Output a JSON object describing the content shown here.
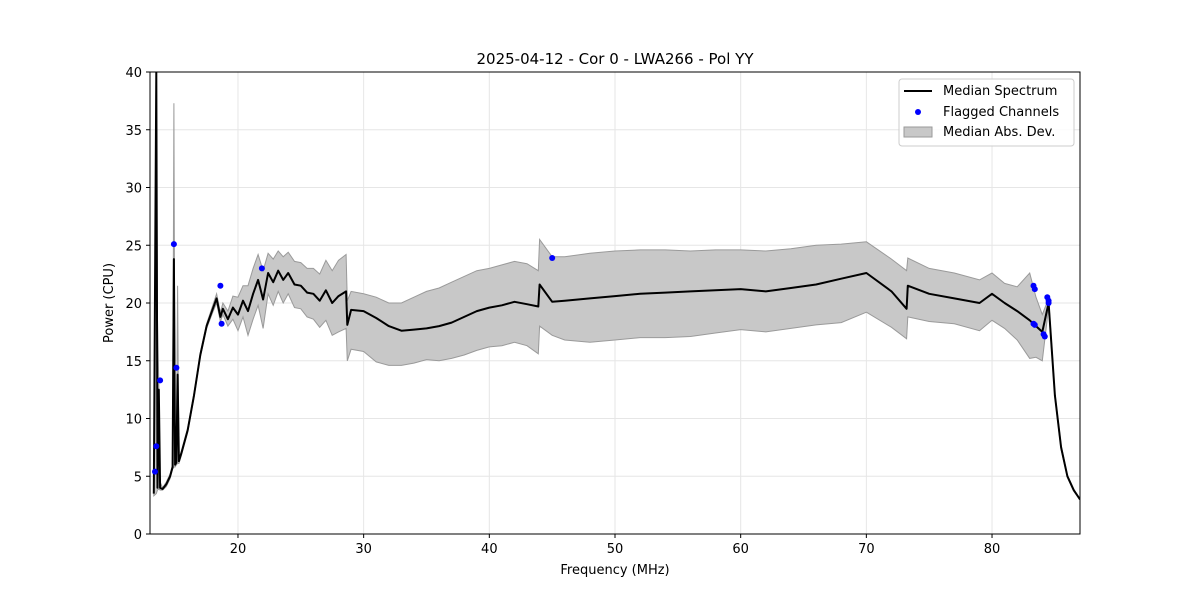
{
  "chart_data": {
    "type": "line",
    "title": "2025-04-12 - Cor 0 - LWA266 - Pol YY",
    "xlabel": "Frequency (MHz)",
    "ylabel": "Power (CPU)",
    "xlim": [
      13,
      87
    ],
    "ylim": [
      0,
      40
    ],
    "xticks": [
      20,
      30,
      40,
      50,
      60,
      70,
      80
    ],
    "yticks": [
      0,
      5,
      10,
      15,
      20,
      25,
      30,
      35,
      40
    ],
    "grid": true,
    "legend_position": "top-right",
    "legend": {
      "median_label": "Median Spectrum",
      "flagged_label": "Flagged Channels",
      "mad_label": "Median Abs. Dev."
    },
    "colors": {
      "median": "#000000",
      "flagged": "#0000ff",
      "band_fill": "#c8c8c8",
      "band_edge": "#9a9a9a",
      "grid": "#e6e6e6"
    },
    "series": [
      {
        "name": "Median Spectrum",
        "x": [
          13.3,
          13.5,
          13.6,
          13.7,
          13.8,
          14.0,
          14.3,
          14.6,
          14.8,
          14.9,
          15.0,
          15.1,
          15.2,
          15.3,
          15.5,
          16.0,
          16.5,
          17.0,
          17.5,
          18.0,
          18.3,
          18.6,
          18.8,
          19.2,
          19.6,
          20.0,
          20.4,
          20.8,
          21.2,
          21.6,
          22.0,
          22.4,
          22.8,
          23.2,
          23.6,
          24.0,
          24.5,
          25.0,
          25.5,
          26.0,
          26.5,
          27.0,
          27.5,
          28.0,
          28.6,
          28.7,
          29.0,
          30.0,
          31.0,
          32.0,
          33.0,
          34.0,
          35.0,
          36.0,
          37.0,
          38.0,
          39.0,
          40.0,
          41.0,
          42.0,
          43.0,
          43.9,
          44.0,
          45.0,
          46.0,
          48.0,
          50.0,
          52.0,
          54.0,
          56.0,
          58.0,
          60.0,
          62.0,
          64.0,
          66.0,
          68.0,
          70.0,
          72.0,
          73.2,
          73.3,
          75.0,
          77.0,
          79.0,
          80.0,
          81.0,
          82.0,
          83.0,
          83.5,
          84.0,
          84.5,
          85.0,
          85.5,
          86.0,
          86.5,
          87.0
        ],
        "values": [
          3.5,
          40.0,
          4.0,
          12.5,
          4.0,
          3.9,
          4.3,
          5.0,
          5.8,
          23.8,
          6.0,
          6.2,
          13.8,
          6.3,
          7.0,
          9.0,
          12.0,
          15.5,
          18.0,
          19.5,
          20.4,
          18.8,
          19.5,
          18.6,
          19.6,
          19.0,
          20.2,
          19.3,
          20.8,
          22.0,
          20.3,
          22.6,
          21.8,
          22.8,
          22.0,
          22.6,
          21.6,
          21.5,
          20.9,
          20.8,
          20.2,
          21.1,
          20.0,
          20.6,
          21.0,
          18.1,
          19.4,
          19.3,
          18.7,
          18.0,
          17.6,
          17.7,
          17.8,
          18.0,
          18.3,
          18.8,
          19.3,
          19.6,
          19.8,
          20.1,
          19.9,
          19.7,
          21.6,
          20.1,
          20.2,
          20.4,
          20.6,
          20.8,
          20.9,
          21.0,
          21.1,
          21.2,
          21.0,
          21.3,
          21.6,
          22.1,
          22.6,
          21.0,
          19.5,
          21.5,
          20.8,
          20.4,
          20.0,
          20.8,
          20.0,
          19.3,
          18.5,
          18.0,
          17.5,
          20.0,
          12.0,
          7.5,
          5.0,
          3.8,
          3.0
        ]
      },
      {
        "name": "Median Abs. Dev.",
        "x": [
          13.3,
          13.5,
          13.6,
          13.7,
          13.8,
          14.0,
          14.3,
          14.6,
          14.8,
          14.9,
          15.0,
          15.1,
          15.2,
          15.3,
          15.5,
          16.0,
          16.5,
          17.0,
          17.5,
          18.0,
          18.3,
          18.6,
          18.8,
          19.2,
          19.6,
          20.0,
          20.4,
          20.8,
          21.2,
          21.6,
          22.0,
          22.4,
          22.8,
          23.2,
          23.6,
          24.0,
          24.5,
          25.0,
          25.5,
          26.0,
          26.5,
          27.0,
          27.5,
          28.0,
          28.6,
          28.7,
          29.0,
          30.0,
          31.0,
          32.0,
          33.0,
          34.0,
          35.0,
          36.0,
          37.0,
          38.0,
          39.0,
          40.0,
          41.0,
          42.0,
          43.0,
          43.9,
          44.0,
          45.0,
          46.0,
          48.0,
          50.0,
          52.0,
          54.0,
          56.0,
          58.0,
          60.0,
          62.0,
          64.0,
          66.0,
          68.0,
          70.0,
          72.0,
          73.2,
          73.3,
          75.0,
          77.0,
          79.0,
          80.0,
          81.0,
          82.0,
          83.0,
          83.5,
          84.0,
          84.5,
          85.0,
          85.5,
          86.0,
          86.5,
          87.0
        ],
        "upper": [
          3.5,
          40.0,
          18.5,
          13.0,
          4.5,
          4.0,
          4.5,
          5.2,
          6.0,
          37.3,
          6.2,
          6.4,
          21.5,
          6.5,
          7.2,
          9.2,
          12.2,
          15.7,
          18.2,
          19.8,
          20.8,
          19.2,
          20.0,
          19.3,
          20.6,
          20.5,
          21.5,
          21.5,
          23.0,
          24.2,
          22.8,
          24.3,
          23.8,
          24.5,
          24.0,
          24.4,
          23.6,
          23.5,
          23.0,
          23.0,
          22.5,
          23.7,
          22.8,
          23.7,
          24.2,
          20.2,
          21.0,
          20.8,
          20.5,
          20.0,
          20.0,
          20.5,
          21.0,
          21.3,
          21.8,
          22.3,
          22.8,
          23.0,
          23.3,
          23.6,
          23.4,
          22.8,
          25.5,
          24.0,
          24.0,
          24.3,
          24.5,
          24.6,
          24.6,
          24.5,
          24.6,
          24.6,
          24.5,
          24.7,
          25.0,
          25.1,
          25.3,
          23.8,
          22.8,
          23.9,
          23.0,
          22.6,
          22.0,
          22.6,
          21.7,
          21.4,
          22.6,
          20.5,
          19.0,
          20.4,
          12.2,
          7.7,
          5.1,
          3.9,
          3.0
        ],
        "lower": [
          3.3,
          3.5,
          3.8,
          3.9,
          3.8,
          3.8,
          4.1,
          4.8,
          5.6,
          5.8,
          5.8,
          6.0,
          6.1,
          6.1,
          6.8,
          8.8,
          11.8,
          15.3,
          17.8,
          19.2,
          20.0,
          18.4,
          19.0,
          18.0,
          18.6,
          17.6,
          18.8,
          17.2,
          18.6,
          19.8,
          17.8,
          20.8,
          19.8,
          21.0,
          20.0,
          20.8,
          19.6,
          19.5,
          18.8,
          18.6,
          17.9,
          18.5,
          17.2,
          17.5,
          17.8,
          15.0,
          16.0,
          15.8,
          14.9,
          14.6,
          14.6,
          14.8,
          15.1,
          15.0,
          15.2,
          15.5,
          15.9,
          16.2,
          16.3,
          16.6,
          16.3,
          15.6,
          18.0,
          17.2,
          16.8,
          16.6,
          16.8,
          17.0,
          17.0,
          17.1,
          17.4,
          17.7,
          17.5,
          17.8,
          18.1,
          18.3,
          19.2,
          17.9,
          16.9,
          18.8,
          18.4,
          18.2,
          17.6,
          18.5,
          17.8,
          16.8,
          15.2,
          15.3,
          15.0,
          19.6,
          11.8,
          7.3,
          4.9,
          3.7,
          3.0
        ]
      },
      {
        "name": "Flagged Channels",
        "x": [
          13.4,
          13.5,
          13.8,
          14.9,
          15.1,
          18.6,
          18.7,
          21.9,
          45.0,
          83.3,
          83.4,
          83.3,
          83.4,
          84.1,
          84.2,
          84.4,
          84.5,
          84.5
        ],
        "values": [
          5.4,
          7.6,
          13.3,
          25.1,
          14.4,
          21.5,
          18.2,
          23.0,
          23.9,
          21.5,
          21.2,
          18.2,
          18.1,
          17.3,
          17.1,
          20.5,
          20.2,
          20.0
        ]
      }
    ]
  }
}
